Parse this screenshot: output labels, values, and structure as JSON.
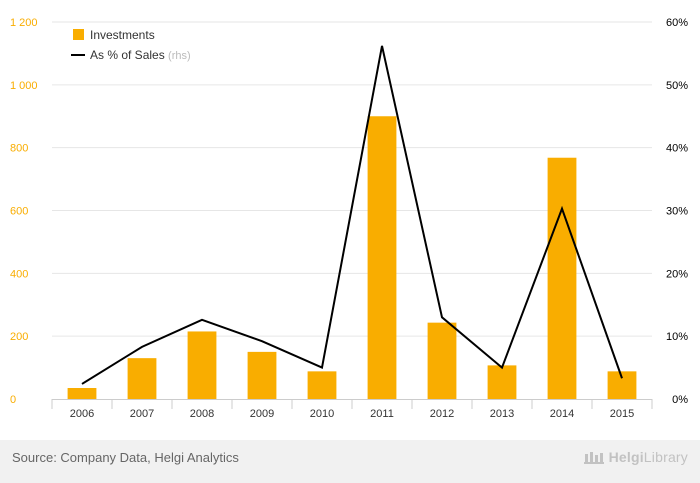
{
  "chart_data": {
    "type": "bar",
    "categories": [
      "2006",
      "2007",
      "2008",
      "2009",
      "2010",
      "2011",
      "2012",
      "2013",
      "2014",
      "2015"
    ],
    "series": [
      {
        "name": "Investments",
        "kind": "bar",
        "axis": "left",
        "color": "#F9AD00",
        "values": [
          35,
          130,
          215,
          150,
          88,
          900,
          243,
          107,
          768,
          88
        ]
      },
      {
        "name": "As % of Sales",
        "kind": "line",
        "axis": "right",
        "color": "#000000",
        "values": [
          2.4,
          8.3,
          12.6,
          9.2,
          5.0,
          56.2,
          13.0,
          5.0,
          30.3,
          3.3
        ]
      }
    ],
    "legend": {
      "line_suffix": "(rhs)",
      "placement": "top-left"
    },
    "y_left": {
      "min": 0,
      "max": 1200,
      "ticks": [
        {
          "value": 0,
          "label": "0"
        },
        {
          "value": 200,
          "label": "200"
        },
        {
          "value": 400,
          "label": "400"
        },
        {
          "value": 600,
          "label": "600"
        },
        {
          "value": 800,
          "label": "800"
        },
        {
          "value": 1000,
          "label": "1 000"
        },
        {
          "value": 1200,
          "label": "1 200"
        }
      ]
    },
    "y_right": {
      "min": 0,
      "max": 60,
      "ticks": [
        {
          "value": 0,
          "label": "0%"
        },
        {
          "value": 10,
          "label": "10%"
        },
        {
          "value": 20,
          "label": "20%"
        },
        {
          "value": 30,
          "label": "30%"
        },
        {
          "value": 40,
          "label": "40%"
        },
        {
          "value": 50,
          "label": "50%"
        },
        {
          "value": 60,
          "label": "60%"
        }
      ]
    },
    "grid": true,
    "colors": {
      "left_axis_labels": "#F9AD00",
      "right_axis_labels": "#000000",
      "grid": "#e6e6e6"
    }
  },
  "footer": {
    "source": "Source: Company Data, Helgi Analytics",
    "brand_prefix": "Helgi",
    "brand_suffix": "Library"
  }
}
